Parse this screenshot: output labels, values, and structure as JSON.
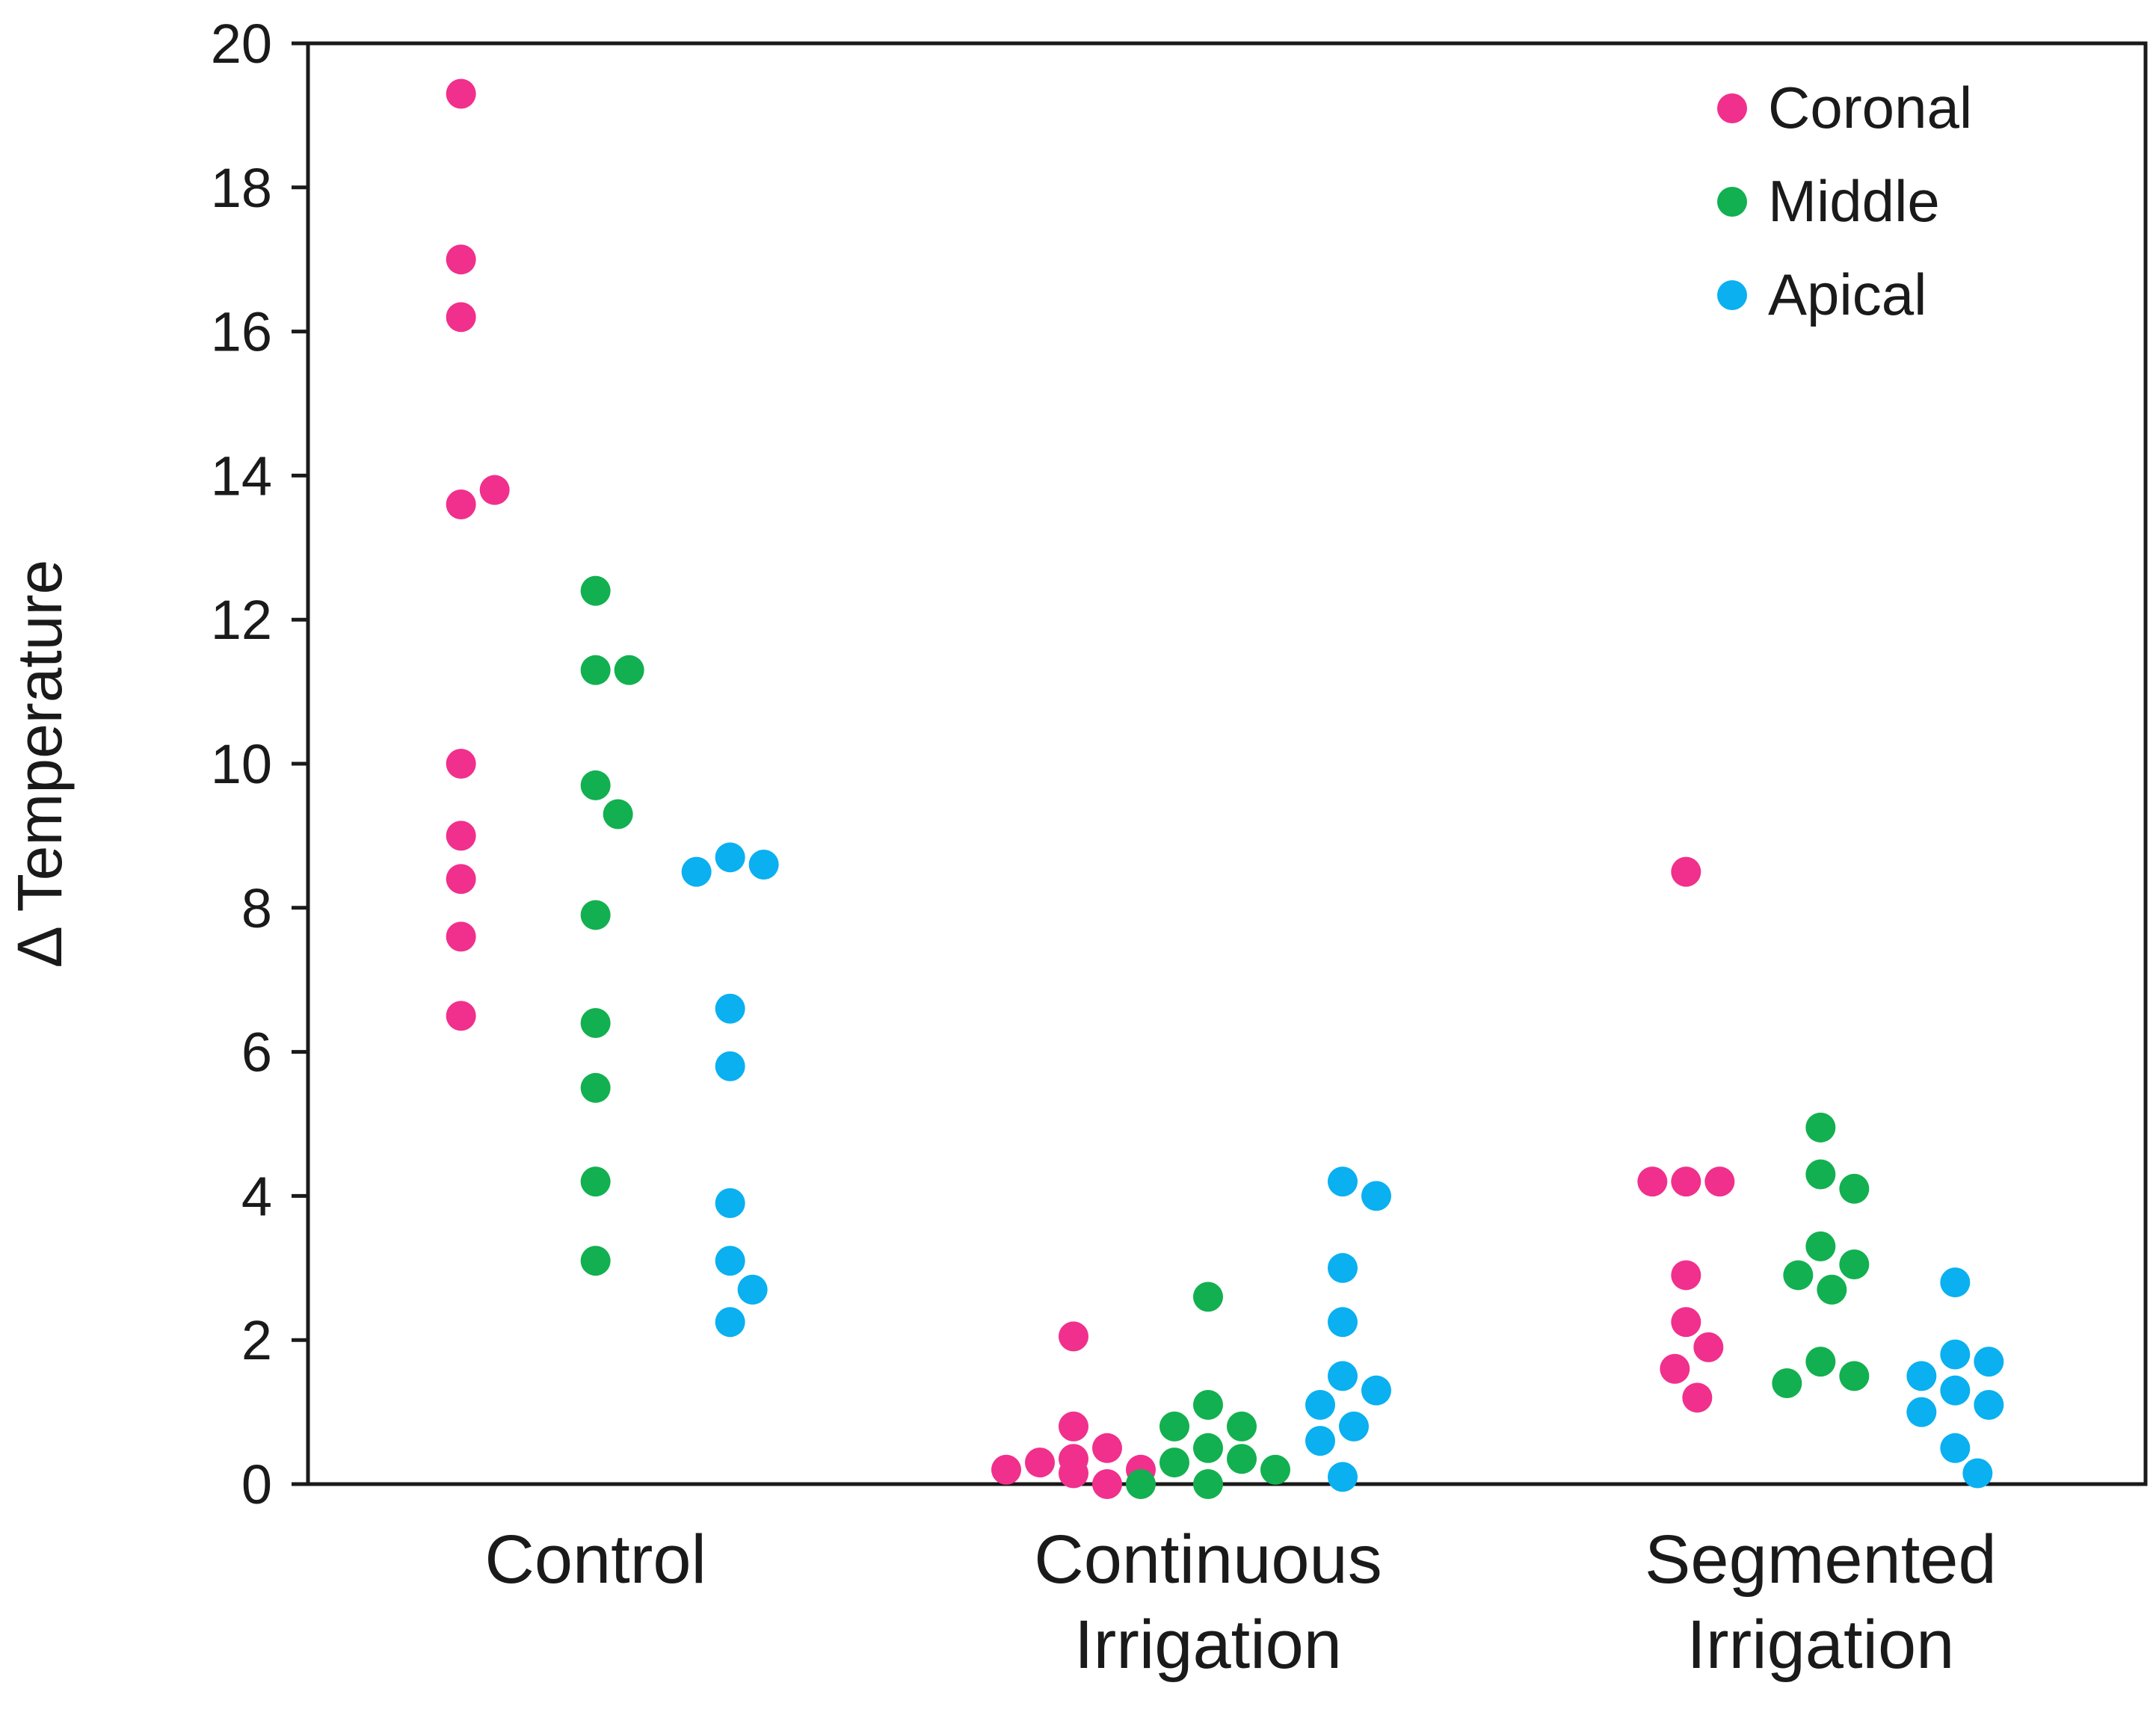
{
  "chart_data": {
    "type": "scatter",
    "title": "",
    "xlabel": "",
    "ylabel": "Δ Temperature",
    "ylim": [
      0,
      20
    ],
    "yticks": [
      0,
      2,
      4,
      6,
      8,
      10,
      12,
      14,
      16,
      18,
      20
    ],
    "grid": false,
    "legend_position": "top-right",
    "categories": [
      {
        "id": "control",
        "lines": [
          "Control"
        ]
      },
      {
        "id": "continuous",
        "lines": [
          "Continuous",
          "Irrigation"
        ]
      },
      {
        "id": "segmented",
        "lines": [
          "Segmented",
          "Irrigation"
        ]
      }
    ],
    "series": [
      {
        "name": "Coronal",
        "color": "#f0308c",
        "values": [
          [
            19.3,
            17.0,
            16.2,
            13.6,
            13.8,
            10.0,
            9.0,
            8.4,
            7.6,
            6.5
          ],
          [
            2.05,
            0.8,
            0.5,
            0.35,
            0.3,
            0.2,
            0.2,
            0.15,
            0.0
          ],
          [
            8.5,
            4.2,
            4.2,
            4.2,
            2.9,
            2.25,
            1.9,
            1.6,
            1.2
          ]
        ]
      },
      {
        "name": "Middle",
        "color": "#12b050",
        "values": [
          [
            12.4,
            11.3,
            11.3,
            9.7,
            9.3,
            7.9,
            6.4,
            5.5,
            4.2,
            3.1
          ],
          [
            2.6,
            1.1,
            0.8,
            0.8,
            0.5,
            0.35,
            0.3,
            0.2,
            0.0,
            0.0
          ],
          [
            4.95,
            4.3,
            4.1,
            3.3,
            3.05,
            2.9,
            2.7,
            1.7,
            1.5,
            1.4
          ]
        ]
      },
      {
        "name": "Apical",
        "color": "#0ab0f0",
        "values": [
          [
            8.7,
            8.6,
            8.5,
            6.6,
            5.8,
            3.9,
            3.1,
            2.7,
            2.25
          ],
          [
            4.2,
            4.0,
            3.0,
            2.25,
            1.5,
            1.3,
            1.1,
            0.8,
            0.6,
            0.1
          ],
          [
            2.8,
            1.8,
            1.7,
            1.5,
            1.3,
            1.1,
            1.0,
            0.5,
            0.15
          ]
        ]
      }
    ]
  }
}
